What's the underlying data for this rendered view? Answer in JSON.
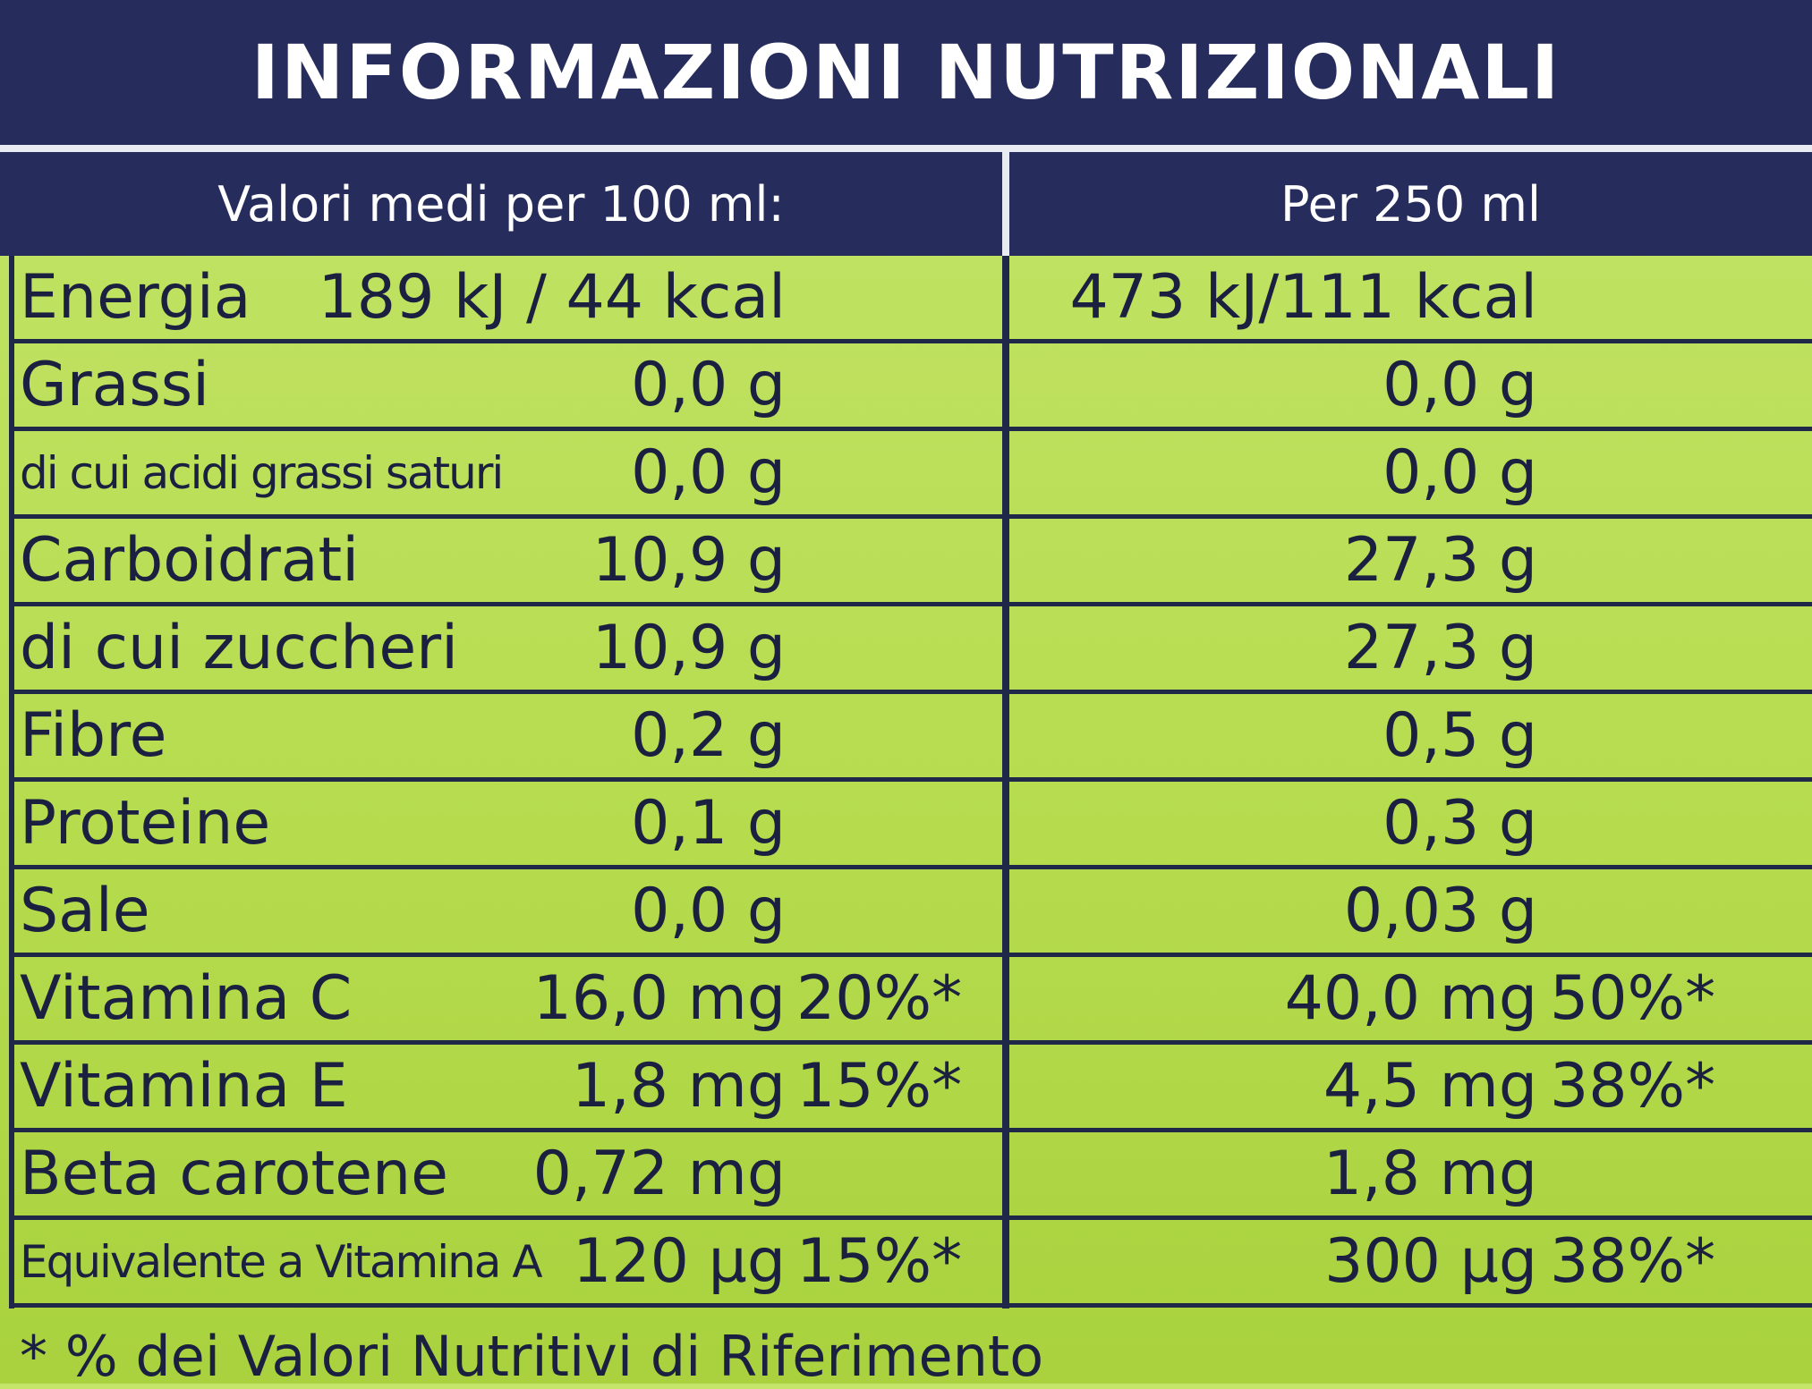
{
  "header": {
    "title": "INFORMAZIONI NUTRIZIONALI"
  },
  "table": {
    "columns": [
      "Valori medi per 100 ml:",
      "Per 250 ml"
    ],
    "rows": [
      {
        "label": "Energia",
        "per_100ml": {
          "amount": "189 kJ / 44 kcal"
        },
        "per_250ml": {
          "amount": "473 kJ/111 kcal"
        }
      },
      {
        "label": "Grassi",
        "per_100ml": {
          "amount": "0,0 g"
        },
        "per_250ml": {
          "amount": "0,0 g"
        }
      },
      {
        "label": "di cui acidi grassi saturi",
        "per_100ml": {
          "amount": "0,0 g"
        },
        "per_250ml": {
          "amount": "0,0 g"
        }
      },
      {
        "label": "Carboidrati",
        "per_100ml": {
          "amount": "10,9 g"
        },
        "per_250ml": {
          "amount": "27,3 g"
        }
      },
      {
        "label": "di cui zuccheri",
        "per_100ml": {
          "amount": "10,9 g"
        },
        "per_250ml": {
          "amount": "27,3 g"
        }
      },
      {
        "label": "Fibre",
        "per_100ml": {
          "amount": "0,2 g"
        },
        "per_250ml": {
          "amount": "0,5 g"
        }
      },
      {
        "label": "Proteine",
        "per_100ml": {
          "amount": "0,1 g"
        },
        "per_250ml": {
          "amount": "0,3 g"
        }
      },
      {
        "label": "Sale",
        "per_100ml": {
          "amount": "0,0 g"
        },
        "per_250ml": {
          "amount": "0,03 g"
        }
      },
      {
        "label": "Vitamina C",
        "per_100ml": {
          "amount": "16,0 mg",
          "pct": "20%*"
        },
        "per_250ml": {
          "amount": "40,0 mg",
          "pct": "50%*"
        }
      },
      {
        "label": "Vitamina E",
        "per_100ml": {
          "amount": "1,8 mg",
          "pct": "15%*"
        },
        "per_250ml": {
          "amount": "4,5 mg",
          "pct": "38%*"
        }
      },
      {
        "label": "Beta carotene",
        "per_100ml": {
          "amount": "0,72 mg"
        },
        "per_250ml": {
          "amount": "1,8 mg"
        }
      },
      {
        "label": "Equivalente a Vitamina A",
        "per_100ml": {
          "amount": "120 µg",
          "pct": "15%*"
        },
        "per_250ml": {
          "amount": "300 µg",
          "pct": "38%*"
        }
      }
    ]
  },
  "footnote": "* % dei Valori Nutritivi di Riferimento"
}
